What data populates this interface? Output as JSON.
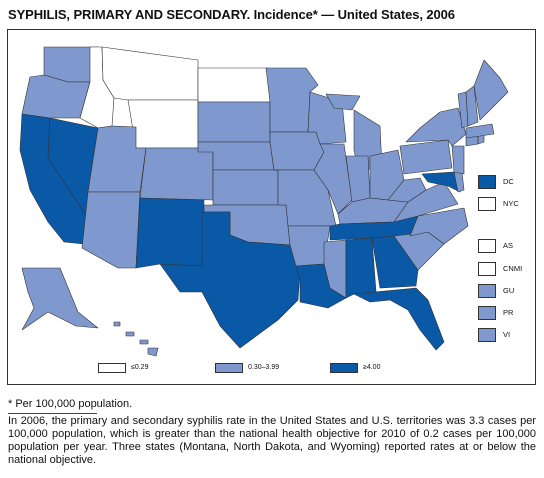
{
  "title": "SYPHILIS, PRIMARY AND SECONDARY. Incidence* — United States, 2006",
  "colors": {
    "low": "#ffffff",
    "mid": "#7f99cf",
    "high": "#0a59a7",
    "border": "#333333"
  },
  "legend": [
    {
      "range": "≤0.29",
      "level": "low"
    },
    {
      "range": "0.30–3.99",
      "level": "mid"
    },
    {
      "range": "≥4.00",
      "level": "high"
    }
  ],
  "side_legend": [
    {
      "label": "DC",
      "level": "high"
    },
    {
      "label": "NYC",
      "level": "low"
    },
    {
      "label": "AS",
      "level": "low"
    },
    {
      "label": "CNMI",
      "level": "low"
    },
    {
      "label": "GU",
      "level": "mid"
    },
    {
      "label": "PR",
      "level": "mid"
    },
    {
      "label": "VI",
      "level": "mid"
    }
  ],
  "state_levels": {
    "WA": "mid",
    "OR": "mid",
    "CA": "high",
    "NV": "high",
    "ID": "low",
    "MT": "low",
    "WY": "low",
    "UT": "mid",
    "AZ": "mid",
    "CO": "mid",
    "NM": "high",
    "ND": "low",
    "SD": "mid",
    "NE": "mid",
    "KS": "mid",
    "OK": "mid",
    "TX": "high",
    "MN": "mid",
    "IA": "mid",
    "MO": "mid",
    "AR": "mid",
    "LA": "high",
    "WI": "mid",
    "IL": "mid",
    "MI": "mid",
    "IN": "mid",
    "OH": "mid",
    "KY": "mid",
    "TN": "high",
    "MS": "mid",
    "AL": "high",
    "GA": "high",
    "FL": "high",
    "SC": "mid",
    "NC": "mid",
    "VA": "mid",
    "WV": "mid",
    "PA": "mid",
    "NY": "mid",
    "MD": "high",
    "DE": "mid",
    "NJ": "mid",
    "CT": "mid",
    "RI": "mid",
    "MA": "mid",
    "VT": "mid",
    "NH": "mid",
    "ME": "mid",
    "AK": "mid",
    "HI": "mid"
  },
  "footnote": "* Per 100,000 population.",
  "caption": "In 2006, the primary and secondary syphilis rate in the United States and U.S. territories was 3.3 cases per 100,000 population, which is greater than the national health objective for 2010 of 0.2 cases per 100,000 population per year. Three states (Montana, North Dakota, and Wyoming) reported rates at or below the national objective."
}
